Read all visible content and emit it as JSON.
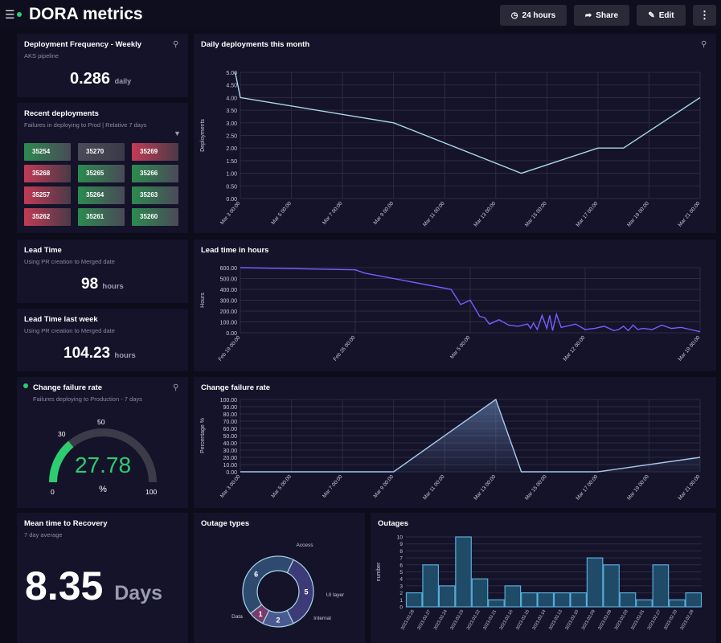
{
  "header": {
    "title": "DORA metrics",
    "time_label": "24 hours",
    "share_label": "Share",
    "edit_label": "Edit"
  },
  "deploy_freq": {
    "title": "Deployment Frequency - Weekly",
    "subtitle": "AKS pipeline",
    "value": "0.286",
    "unit": "daily"
  },
  "recent": {
    "title": "Recent deployments",
    "subtitle": "Failures in deploying to Prod  |  Relative 7 days",
    "tiles": [
      {
        "id": "35254",
        "status": "green"
      },
      {
        "id": "35270",
        "status": "gray"
      },
      {
        "id": "35269",
        "status": "red"
      },
      {
        "id": "35268",
        "status": "red"
      },
      {
        "id": "35265",
        "status": "green"
      },
      {
        "id": "35266",
        "status": "green"
      },
      {
        "id": "35257",
        "status": "red"
      },
      {
        "id": "35264",
        "status": "green"
      },
      {
        "id": "35263",
        "status": "green"
      },
      {
        "id": "35262",
        "status": "red"
      },
      {
        "id": "35261",
        "status": "green"
      },
      {
        "id": "35260",
        "status": "green"
      }
    ]
  },
  "lead_time": {
    "title": "Lead Time",
    "subtitle": "Using PR creation to Merged date",
    "value": "98",
    "unit": "hours"
  },
  "lead_time_week": {
    "title": "Lead Time last week",
    "subtitle": "Using PR creation to Merged date",
    "value": "104.23",
    "unit": "hours"
  },
  "cfr_gauge": {
    "title": "Change failure rate",
    "subtitle": "Failures deploying to Production - 7 days",
    "value": "27.78",
    "unit": "%",
    "min": "0",
    "max": "100",
    "t30": "30",
    "t50": "50",
    "value_num": 27.78,
    "color": "#2ecc71"
  },
  "mttr": {
    "title": "Mean time to Recovery",
    "subtitle": "7 day average",
    "value": "8.35",
    "unit": "Days"
  },
  "chart_data": [
    {
      "type": "line",
      "title": "Daily deployments this month",
      "ylabel": "Deployments",
      "ylim": [
        0,
        5
      ],
      "yticks": [
        "0.00",
        "0.50",
        "1.00",
        "1.50",
        "2.00",
        "2.50",
        "3.00",
        "3.50",
        "4.00",
        "4.50",
        "5.00"
      ],
      "xticks": [
        "Mar 3 00:00",
        "Mar 5 00:00",
        "Mar 7 00:00",
        "Mar 9 00:00",
        "Mar 11 00:00",
        "Mar 13 00:00",
        "Mar 15 00:00",
        "Mar 17 00:00",
        "Mar 19 00:00",
        "Mar 21 00:00"
      ],
      "x": [
        2.8,
        3,
        9,
        14,
        17,
        18,
        21
      ],
      "y": [
        5,
        4,
        3,
        1,
        2,
        2,
        4
      ],
      "color": "#a8d8e8"
    },
    {
      "type": "line",
      "title": "Lead time in hours",
      "ylabel": "Hours",
      "ylim": [
        0,
        600
      ],
      "yticks": [
        "0.00",
        "100.00",
        "200.00",
        "300.00",
        "400.00",
        "500.00",
        "600.00"
      ],
      "xticks": [
        "Feb 19 00:00",
        "Feb 26 00:00",
        "Mar 5 00:00",
        "Mar 12 00:00",
        "Mar 19 00:00"
      ],
      "x": [
        0,
        12,
        13,
        22,
        23,
        24,
        25,
        25.5,
        26,
        27,
        28,
        29,
        30,
        30.3,
        30.6,
        31,
        31.5,
        32,
        32.3,
        32.6,
        33,
        33.5,
        34,
        35,
        36,
        37,
        38,
        39,
        39.5,
        40,
        40.5,
        41,
        41.5,
        42,
        43,
        44,
        45,
        46,
        47,
        48
      ],
      "y": [
        600,
        580,
        550,
        400,
        260,
        300,
        150,
        140,
        80,
        120,
        70,
        60,
        80,
        40,
        90,
        30,
        160,
        40,
        160,
        20,
        170,
        50,
        60,
        80,
        30,
        40,
        60,
        20,
        30,
        60,
        20,
        70,
        30,
        40,
        30,
        70,
        40,
        50,
        30,
        10
      ],
      "color": "#7a5cff"
    },
    {
      "type": "area",
      "title": "Change failure rate",
      "ylabel": "Percentage %",
      "ylim": [
        0,
        100
      ],
      "yticks": [
        "0.00",
        "10.00",
        "20.00",
        "30.00",
        "40.00",
        "50.00",
        "60.00",
        "70.00",
        "80.00",
        "90.00",
        "100.00"
      ],
      "xticks": [
        "Mar 3 00:00",
        "Mar 5 00:00",
        "Mar 7 00:00",
        "Mar 9 00:00",
        "Mar 11 00:00",
        "Mar 13 00:00",
        "Mar 15 00:00",
        "Mar 17 00:00",
        "Mar 19 00:00",
        "Mar 21 00:00"
      ],
      "x": [
        3,
        9,
        13,
        14,
        17,
        21
      ],
      "y": [
        0,
        0,
        100,
        0,
        0,
        20
      ],
      "color": "#a8c8e8"
    },
    {
      "type": "pie",
      "title": "Outage types",
      "labels": [
        "Access",
        "UI layer",
        "Internal",
        "Data"
      ],
      "values": [
        5,
        2,
        1,
        6
      ],
      "colors": [
        "#3d3a78",
        "#4a5a90",
        "#7a3a6a",
        "#2e4a6e"
      ]
    },
    {
      "type": "bar",
      "title": "Outages",
      "ylabel": "number",
      "ylim": [
        0,
        10
      ],
      "yticks": [
        "0",
        "1",
        "2",
        "3",
        "4",
        "5",
        "6",
        "7",
        "8",
        "9",
        "10"
      ],
      "categories": [
        "2023.03.28",
        "2023.03.27",
        "2023.03.24",
        "2023.03.23",
        "2023.03.22",
        "2023.03.21",
        "2023.03.16",
        "2023.03.15",
        "2023.03.14",
        "2023.03.13",
        "2023.03.10",
        "2023.03.09",
        "2023.03.08",
        "2023.03.03",
        "2023.03.01",
        "2023.02.27",
        "2023.02.20",
        "2023.02.28"
      ],
      "values": [
        2,
        6,
        3,
        10,
        4,
        1,
        3,
        2,
        2,
        2,
        2,
        7,
        6,
        2,
        1,
        6,
        1,
        2
      ],
      "color": "#5aaed8"
    }
  ]
}
